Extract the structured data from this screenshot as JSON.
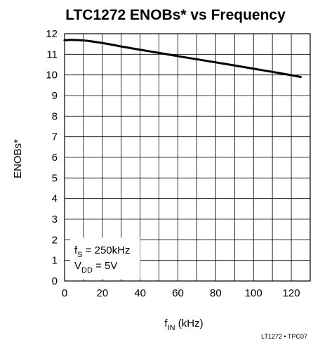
{
  "chart_data": {
    "type": "line",
    "title": "LTC1272 ENOBs* vs Frequency",
    "xlabel": {
      "main": "f",
      "sub": "IN",
      "rest": " (kHz)"
    },
    "ylabel": "ENOBs*",
    "xlim": [
      0,
      130
    ],
    "ylim": [
      0,
      12
    ],
    "xticks": [
      0,
      20,
      40,
      60,
      80,
      100,
      120
    ],
    "yticks": [
      0,
      1,
      2,
      3,
      4,
      5,
      6,
      7,
      8,
      9,
      10,
      11,
      12
    ],
    "grid": true,
    "series": [
      {
        "x": [
          0,
          2,
          5,
          10,
          15,
          20,
          25,
          30,
          40,
          50,
          60,
          70,
          80,
          90,
          100,
          110,
          120,
          125
        ],
        "y": [
          11.68,
          11.7,
          11.7,
          11.68,
          11.62,
          11.55,
          11.47,
          11.38,
          11.22,
          11.07,
          10.91,
          10.76,
          10.61,
          10.46,
          10.3,
          10.15,
          9.99,
          9.9
        ]
      }
    ],
    "annotation": {
      "line1": {
        "main": "f",
        "sub": "S",
        "rest": " = 250kHz"
      },
      "line2": {
        "main": "V",
        "sub": "DD",
        "rest": " = 5V"
      }
    },
    "footer": "LT1272 • TPC07"
  }
}
